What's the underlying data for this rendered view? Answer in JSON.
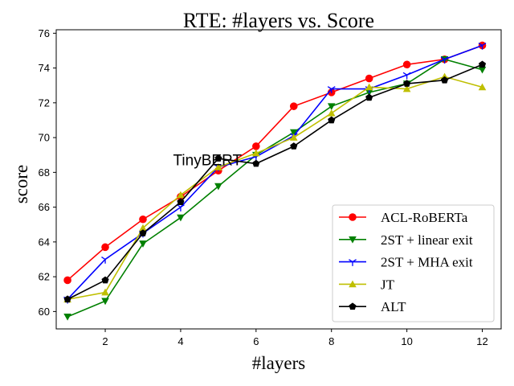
{
  "chart_data": {
    "type": "line",
    "title": "RTE: #layers vs. Score",
    "xlabel": "#layers",
    "ylabel": "score",
    "xlim": [
      0.7,
      12.5
    ],
    "ylim": [
      59.0,
      76.2
    ],
    "xticks": [
      2,
      4,
      6,
      8,
      10,
      12
    ],
    "yticks": [
      60,
      62,
      64,
      66,
      68,
      70,
      72,
      74,
      76
    ],
    "grid": false,
    "legend_position": "lower-right",
    "x": [
      1,
      2,
      3,
      4,
      5,
      6,
      7,
      8,
      9,
      10,
      11,
      12
    ],
    "series": [
      {
        "name": "ACL-RoBERTa",
        "color": "#ff0000",
        "marker": "circle",
        "values": [
          61.8,
          63.7,
          65.3,
          66.6,
          68.1,
          69.5,
          71.8,
          72.6,
          73.4,
          74.2,
          74.5,
          75.3
        ]
      },
      {
        "name": "2ST + linear exit",
        "color": "#008000",
        "marker": "triangle-down",
        "values": [
          59.7,
          60.6,
          63.9,
          65.4,
          67.2,
          69.0,
          70.3,
          71.8,
          72.6,
          73.1,
          74.5,
          73.9
        ]
      },
      {
        "name": "2ST + MHA exit",
        "color": "#0000ff",
        "marker": "tri-down",
        "values": [
          60.7,
          63.0,
          64.5,
          66.0,
          68.3,
          68.9,
          70.1,
          72.8,
          72.8,
          73.6,
          74.5,
          75.3
        ]
      },
      {
        "name": "JT",
        "color": "#bfbf00",
        "marker": "triangle-up",
        "values": [
          60.7,
          61.1,
          64.8,
          66.7,
          68.3,
          69.1,
          70.0,
          71.4,
          72.9,
          72.8,
          73.5,
          72.9
        ]
      },
      {
        "name": "ALT",
        "color": "#000000",
        "marker": "pentagon",
        "values": [
          60.7,
          61.8,
          64.5,
          66.3,
          68.8,
          68.5,
          69.5,
          71.0,
          72.3,
          73.1,
          73.3,
          74.2
        ]
      }
    ],
    "annotations": [
      {
        "text": "TinyBERT",
        "x": 3.8,
        "y": 68.4
      }
    ]
  }
}
